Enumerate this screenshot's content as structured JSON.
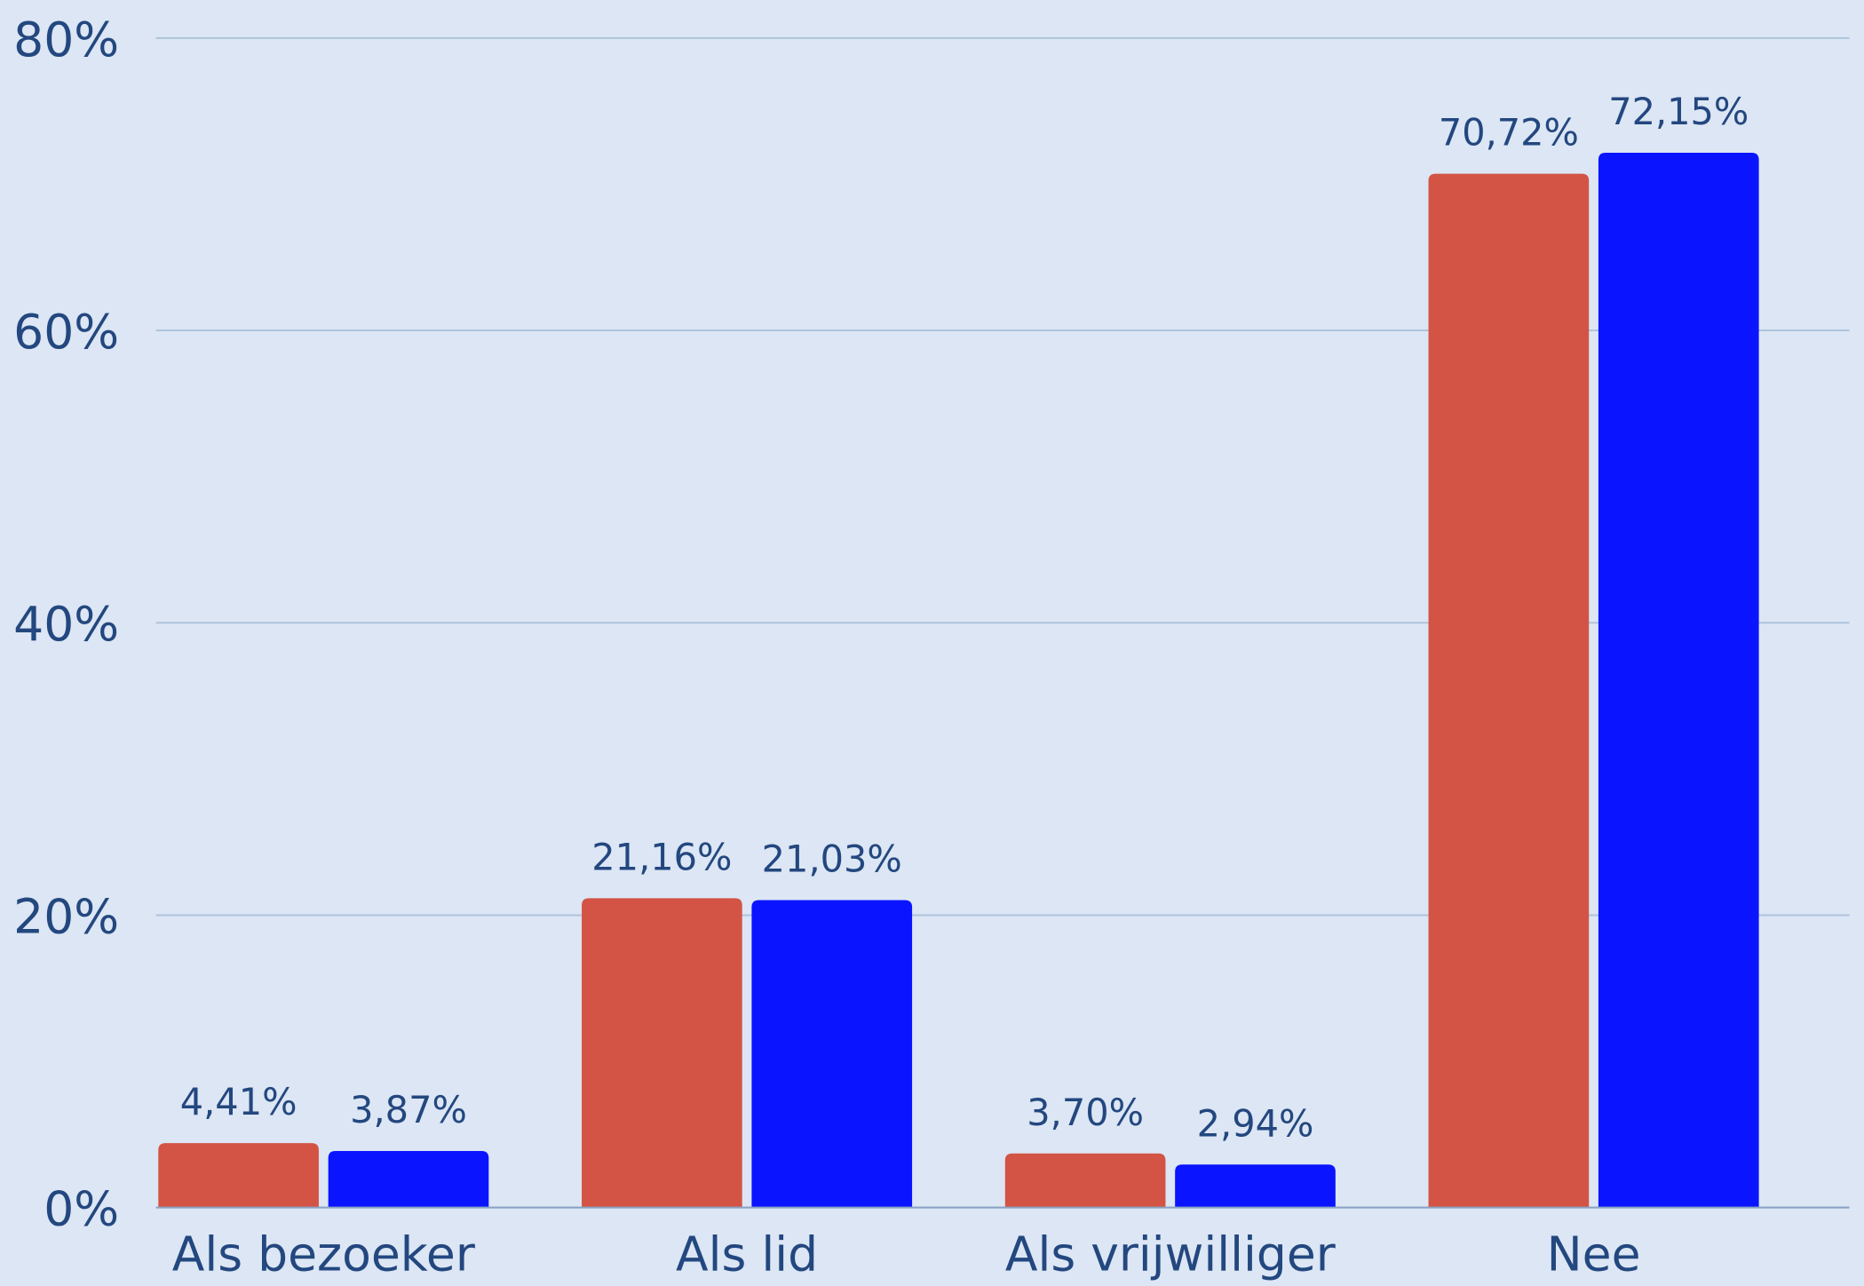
{
  "chart_data": {
    "type": "bar",
    "categories": [
      "Als bezoeker",
      "Als lid",
      "Als vrijwilliger",
      "Nee"
    ],
    "series": [
      {
        "color": "#d35445",
        "values": [
          4.41,
          21.16,
          3.7,
          70.72
        ],
        "value_labels": [
          "4,41%",
          "21,16%",
          "3,70%",
          "70,72%"
        ]
      },
      {
        "color": "#0a14ff",
        "values": [
          3.87,
          21.03,
          2.94,
          72.15
        ],
        "value_labels": [
          "3,87%",
          "21,03%",
          "2,94%",
          "72,15%"
        ]
      }
    ],
    "ylim": [
      0,
      80
    ],
    "yticks": [
      {
        "value": 0,
        "label": "0%"
      },
      {
        "value": 20,
        "label": "20%"
      },
      {
        "value": 40,
        "label": "40%"
      },
      {
        "value": 60,
        "label": "60%"
      },
      {
        "value": 80,
        "label": "80%"
      }
    ],
    "grid": true
  }
}
